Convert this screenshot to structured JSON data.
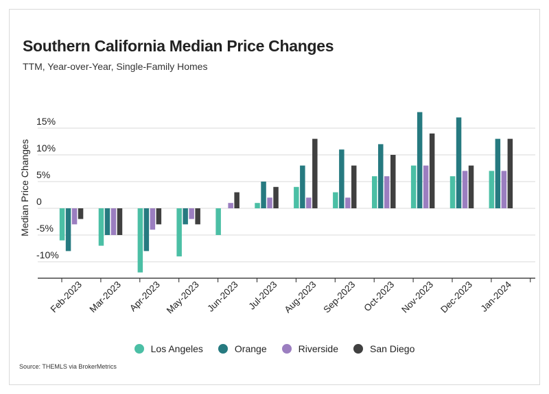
{
  "title": "Southern California Median Price Changes",
  "subtitle": "TTM, Year-over-Year, Single-Family Homes",
  "source": "Source:  THEMLS via BrokerMetrics",
  "chart_data": {
    "type": "bar",
    "ylabel": "Median Price Changes",
    "ylim": [
      -13,
      19
    ],
    "yticks": [
      -10,
      -5,
      0,
      5,
      10,
      15
    ],
    "ytick_labels": [
      "-10%",
      "-5%",
      "0",
      "5%",
      "10%",
      "15%"
    ],
    "grid": true,
    "legend_position": "bottom",
    "categories": [
      "Feb-2023",
      "Mar-2023",
      "Apr-2023",
      "May-2023",
      "Jun-2023",
      "Jul-2023",
      "Aug-2023",
      "Sep-2023",
      "Oct-2023",
      "Nov-2023",
      "Dec-2023",
      "Jan-2024"
    ],
    "series": [
      {
        "name": "Los Angeles",
        "color": "#4bbfa5",
        "values": [
          -6,
          -7,
          -12,
          -9,
          -5,
          1,
          4,
          3,
          6,
          8,
          6,
          7
        ]
      },
      {
        "name": "Orange",
        "color": "#267a80",
        "values": [
          -8,
          -5,
          -8,
          -3,
          null,
          5,
          8,
          11,
          12,
          18,
          17,
          13
        ]
      },
      {
        "name": "Riverside",
        "color": "#9b7ec0",
        "values": [
          -3,
          -5,
          -4,
          -2,
          1,
          2,
          2,
          2,
          6,
          8,
          7,
          7
        ]
      },
      {
        "name": "San Diego",
        "color": "#404040",
        "values": [
          -2,
          -5,
          -3,
          -3,
          3,
          4,
          13,
          8,
          10,
          14,
          8,
          13
        ]
      }
    ]
  }
}
